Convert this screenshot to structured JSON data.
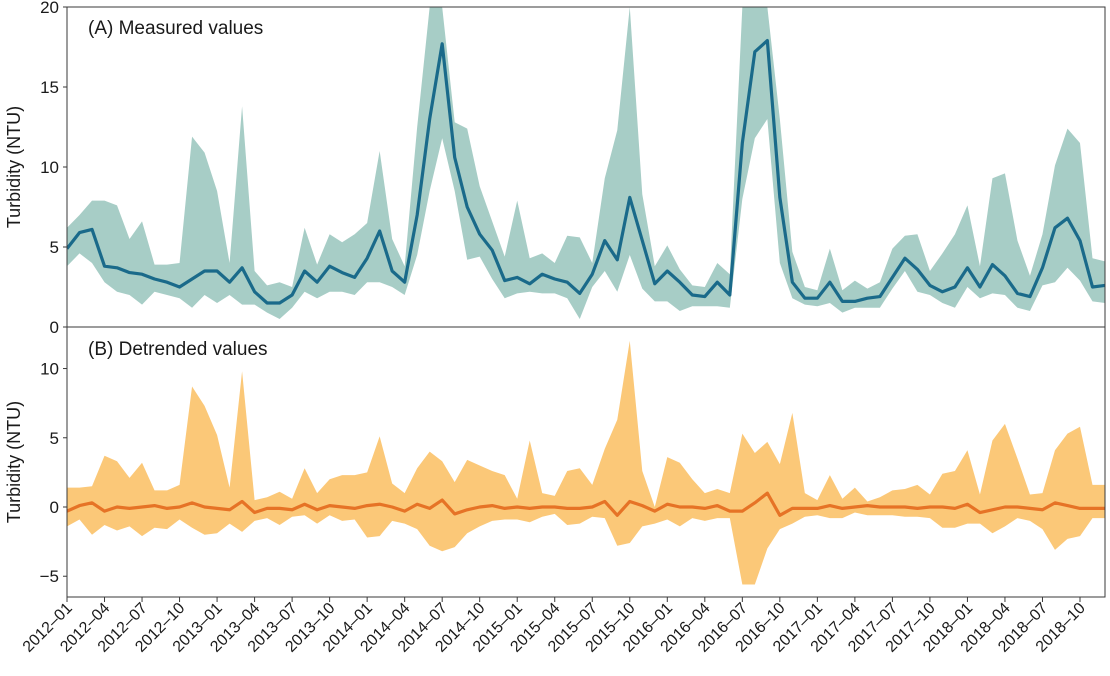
{
  "chart_data": [
    {
      "type": "area",
      "title": "(A) Measured values",
      "ylabel": "Turbidity (NTU)",
      "xlabel": "",
      "ylim": [
        0,
        20
      ],
      "yticks": [
        "0",
        "5",
        "10",
        "15",
        "20"
      ],
      "ytick_values": [
        0,
        5,
        10,
        15,
        20
      ],
      "x": [
        "2012-01",
        "2012-02",
        "2012-03",
        "2012-04",
        "2012-05",
        "2012-06",
        "2012-07",
        "2012-08",
        "2012-09",
        "2012-10",
        "2012-11",
        "2012-12",
        "2013-01",
        "2013-02",
        "2013-03",
        "2013-04",
        "2013-05",
        "2013-06",
        "2013-07",
        "2013-08",
        "2013-09",
        "2013-10",
        "2013-11",
        "2013-12",
        "2014-01",
        "2014-02",
        "2014-03",
        "2014-04",
        "2014-05",
        "2014-06",
        "2014-07",
        "2014-08",
        "2014-09",
        "2014-10",
        "2014-11",
        "2014-12",
        "2015-01",
        "2015-02",
        "2015-03",
        "2015-04",
        "2015-05",
        "2015-06",
        "2015-07",
        "2015-08",
        "2015-09",
        "2015-10",
        "2015-11",
        "2015-12",
        "2016-01",
        "2016-02",
        "2016-03",
        "2016-04",
        "2016-05",
        "2016-06",
        "2016-07",
        "2016-08",
        "2016-09",
        "2016-10",
        "2016-11",
        "2016-12",
        "2017-01",
        "2017-02",
        "2017-03",
        "2017-04",
        "2017-05",
        "2017-06",
        "2017-07",
        "2017-08",
        "2017-09",
        "2017-10",
        "2017-11",
        "2017-12",
        "2018-01",
        "2018-02",
        "2018-03",
        "2018-04",
        "2018-05",
        "2018-06",
        "2018-07",
        "2018-08",
        "2018-09",
        "2018-10",
        "2018-11",
        "2018-12"
      ],
      "series": [
        {
          "values": [
            4.9,
            5.9,
            6.1,
            3.8,
            3.7,
            3.4,
            3.3,
            3.0,
            2.8,
            2.5,
            3.0,
            3.5,
            3.5,
            2.8,
            3.7,
            2.2,
            1.5,
            1.5,
            2.0,
            3.5,
            2.8,
            3.8,
            3.4,
            3.1,
            4.3,
            6.0,
            3.5,
            2.8,
            7.0,
            13.0,
            17.7,
            10.6,
            7.5,
            5.8,
            4.8,
            2.9,
            3.1,
            2.7,
            3.3,
            3.0,
            2.8,
            2.1,
            3.3,
            5.4,
            4.2,
            8.1,
            5.4,
            2.7,
            3.5,
            2.8,
            2.0,
            1.9,
            2.8,
            2.0,
            11.5,
            17.2,
            17.9,
            8.1,
            2.8,
            1.8,
            1.8,
            2.8,
            1.6,
            1.6,
            1.8,
            1.9,
            3.1,
            4.3,
            3.6,
            2.6,
            2.2,
            2.5,
            3.7,
            2.5,
            3.9,
            3.2,
            2.1,
            1.9,
            3.7,
            6.2,
            6.8,
            5.4,
            2.5,
            2.6
          ],
          "lower": [
            3.8,
            4.6,
            4.0,
            2.8,
            2.2,
            2.0,
            1.4,
            2.2,
            2.0,
            1.8,
            1.2,
            2.0,
            1.5,
            2.0,
            1.4,
            1.4,
            0.9,
            0.5,
            1.2,
            2.2,
            1.8,
            2.2,
            2.2,
            2.0,
            2.8,
            2.8,
            2.5,
            2.0,
            4.5,
            8.5,
            11.8,
            8.5,
            4.2,
            4.4,
            3.0,
            1.8,
            2.1,
            2.2,
            2.1,
            2.1,
            1.8,
            0.5,
            2.5,
            3.5,
            2.2,
            4.5,
            2.4,
            1.6,
            1.6,
            1.0,
            1.3,
            1.3,
            1.3,
            1.2,
            8.0,
            11.8,
            13.0,
            4.0,
            1.8,
            1.4,
            1.3,
            1.5,
            0.9,
            1.2,
            1.2,
            1.2,
            2.4,
            3.5,
            2.2,
            2.0,
            1.5,
            1.2,
            2.5,
            1.8,
            2.1,
            2.0,
            1.2,
            1.0,
            2.6,
            2.8,
            3.7,
            2.9,
            1.6,
            1.5
          ],
          "upper": [
            6.2,
            7.0,
            7.9,
            7.9,
            7.6,
            5.5,
            6.6,
            3.9,
            3.9,
            4.0,
            11.9,
            10.9,
            8.5,
            4.0,
            13.8,
            3.5,
            2.6,
            2.8,
            2.5,
            6.2,
            3.9,
            5.8,
            5.3,
            5.8,
            6.5,
            11.0,
            5.5,
            3.8,
            12.5,
            20.0,
            20.0,
            12.8,
            12.4,
            8.8,
            6.6,
            4.4,
            7.9,
            4.3,
            4.6,
            4.0,
            5.7,
            5.6,
            4.0,
            9.3,
            12.3,
            20.0,
            8.3,
            3.8,
            5.1,
            3.6,
            2.6,
            2.5,
            4.0,
            3.3,
            20.0,
            20.0,
            20.0,
            13.0,
            4.7,
            2.5,
            2.3,
            4.9,
            2.3,
            2.9,
            2.4,
            2.8,
            4.9,
            5.7,
            5.8,
            3.5,
            4.6,
            5.8,
            7.6,
            3.8,
            9.3,
            9.6,
            5.4,
            3.2,
            5.8,
            10.1,
            12.4,
            11.5,
            4.3,
            4.1
          ]
        }
      ]
    },
    {
      "type": "area",
      "title": "(B) Detrended values",
      "ylabel": "Turbidity (NTU)",
      "xlabel": "",
      "ylim": [
        -6.5,
        13
      ],
      "yticks": [
        "−5",
        "0",
        "5",
        "10"
      ],
      "ytick_values": [
        -5,
        0,
        5,
        10
      ],
      "x": [
        "2012-01",
        "2012-02",
        "2012-03",
        "2012-04",
        "2012-05",
        "2012-06",
        "2012-07",
        "2012-08",
        "2012-09",
        "2012-10",
        "2012-11",
        "2012-12",
        "2013-01",
        "2013-02",
        "2013-03",
        "2013-04",
        "2013-05",
        "2013-06",
        "2013-07",
        "2013-08",
        "2013-09",
        "2013-10",
        "2013-11",
        "2013-12",
        "2014-01",
        "2014-02",
        "2014-03",
        "2014-04",
        "2014-05",
        "2014-06",
        "2014-07",
        "2014-08",
        "2014-09",
        "2014-10",
        "2014-11",
        "2014-12",
        "2015-01",
        "2015-02",
        "2015-03",
        "2015-04",
        "2015-05",
        "2015-06",
        "2015-07",
        "2015-08",
        "2015-09",
        "2015-10",
        "2015-11",
        "2015-12",
        "2016-01",
        "2016-02",
        "2016-03",
        "2016-04",
        "2016-05",
        "2016-06",
        "2016-07",
        "2016-08",
        "2016-09",
        "2016-10",
        "2016-11",
        "2016-12",
        "2017-01",
        "2017-02",
        "2017-03",
        "2017-04",
        "2017-05",
        "2017-06",
        "2017-07",
        "2017-08",
        "2017-09",
        "2017-10",
        "2017-11",
        "2017-12",
        "2018-01",
        "2018-02",
        "2018-03",
        "2018-04",
        "2018-05",
        "2018-06",
        "2018-07",
        "2018-08",
        "2018-09",
        "2018-10",
        "2018-11",
        "2018-12"
      ],
      "series": [
        {
          "values": [
            -0.3,
            0.1,
            0.3,
            -0.3,
            0.0,
            -0.1,
            0.0,
            0.1,
            -0.1,
            0.0,
            0.3,
            0.0,
            -0.1,
            -0.2,
            0.4,
            -0.4,
            -0.1,
            -0.1,
            -0.2,
            0.2,
            -0.2,
            0.1,
            0.0,
            -0.1,
            0.1,
            0.2,
            0.0,
            -0.3,
            0.2,
            -0.1,
            0.5,
            -0.5,
            -0.2,
            0.0,
            0.1,
            -0.1,
            0.0,
            -0.1,
            0.0,
            0.0,
            -0.1,
            -0.1,
            0.0,
            0.4,
            -0.6,
            0.4,
            0.1,
            -0.3,
            0.2,
            0.0,
            0.0,
            -0.1,
            0.1,
            -0.3,
            -0.3,
            0.3,
            1.0,
            -0.6,
            -0.1,
            -0.1,
            -0.1,
            0.1,
            -0.1,
            0.0,
            0.1,
            0.0,
            0.0,
            0.0,
            -0.1,
            0.0,
            0.0,
            -0.1,
            0.2,
            -0.4,
            -0.2,
            0.0,
            0.0,
            -0.1,
            -0.2,
            0.3,
            0.1,
            -0.1,
            -0.1,
            -0.1
          ],
          "lower": [
            -1.4,
            -0.9,
            -2.0,
            -1.3,
            -1.7,
            -1.4,
            -2.1,
            -1.5,
            -1.6,
            -0.9,
            -1.5,
            -2.0,
            -1.9,
            -1.2,
            -1.8,
            -1.0,
            -0.8,
            -1.3,
            -0.7,
            -0.6,
            -1.2,
            -0.6,
            -1.0,
            -0.9,
            -2.2,
            -2.1,
            -1.0,
            -1.2,
            -1.6,
            -2.8,
            -3.2,
            -2.9,
            -1.9,
            -1.4,
            -1.0,
            -0.9,
            -0.9,
            -1.1,
            -0.7,
            -0.5,
            -1.3,
            -1.2,
            -0.7,
            -0.8,
            -2.8,
            -2.6,
            -1.4,
            -1.2,
            -0.9,
            -1.4,
            -0.8,
            -1.0,
            -0.8,
            -0.8,
            -5.6,
            -5.6,
            -3.0,
            -1.6,
            -1.2,
            -0.7,
            -0.6,
            -0.8,
            -0.8,
            -0.4,
            -0.6,
            -0.6,
            -0.6,
            -0.7,
            -0.7,
            -0.8,
            -1.5,
            -1.5,
            -1.2,
            -1.2,
            -1.9,
            -1.4,
            -0.8,
            -1.0,
            -1.6,
            -3.1,
            -2.3,
            -2.1,
            -0.8,
            -0.8
          ],
          "upper": [
            1.4,
            1.4,
            1.5,
            3.7,
            3.3,
            2.1,
            3.2,
            1.2,
            1.2,
            1.6,
            8.7,
            7.3,
            5.2,
            1.4,
            9.8,
            0.5,
            0.7,
            1.1,
            0.6,
            2.8,
            1.0,
            2.0,
            2.3,
            2.3,
            2.5,
            5.1,
            1.7,
            1.0,
            2.8,
            4.0,
            3.3,
            1.8,
            3.4,
            3.0,
            2.6,
            2.3,
            0.6,
            4.8,
            1.0,
            0.8,
            2.6,
            2.8,
            1.6,
            4.2,
            6.3,
            12.0,
            2.6,
            0.0,
            3.6,
            3.2,
            2.0,
            1.0,
            1.3,
            1.0,
            5.3,
            3.9,
            4.7,
            3.1,
            6.8,
            1.0,
            0.5,
            2.3,
            0.6,
            1.4,
            0.4,
            0.7,
            1.2,
            1.3,
            1.6,
            0.9,
            2.4,
            2.6,
            4.1,
            0.9,
            4.8,
            6.0,
            3.5,
            0.9,
            1.0,
            4.1,
            5.3,
            5.8,
            1.6,
            1.6
          ]
        }
      ]
    }
  ],
  "x_tick_labels": [
    "2012–01",
    "2012–04",
    "2012–07",
    "2012–10",
    "2013–01",
    "2013–04",
    "2013–07",
    "2013–10",
    "2014–01",
    "2014–04",
    "2014–07",
    "2014–10",
    "2015–01",
    "2015–04",
    "2015–07",
    "2015–10",
    "2016–01",
    "2016–04",
    "2016–07",
    "2016–10",
    "2017–01",
    "2017–04",
    "2017–07",
    "2017–10",
    "2018–01",
    "2018–04",
    "2018–07",
    "2018–10"
  ],
  "colors": {
    "panel_a_band": "#a7cdc6",
    "panel_a_line": "#1a6a8a",
    "panel_b_band": "#fbc878",
    "panel_b_line": "#e67326",
    "frame": "#3a3a3a",
    "text": "#1a1a1a"
  }
}
